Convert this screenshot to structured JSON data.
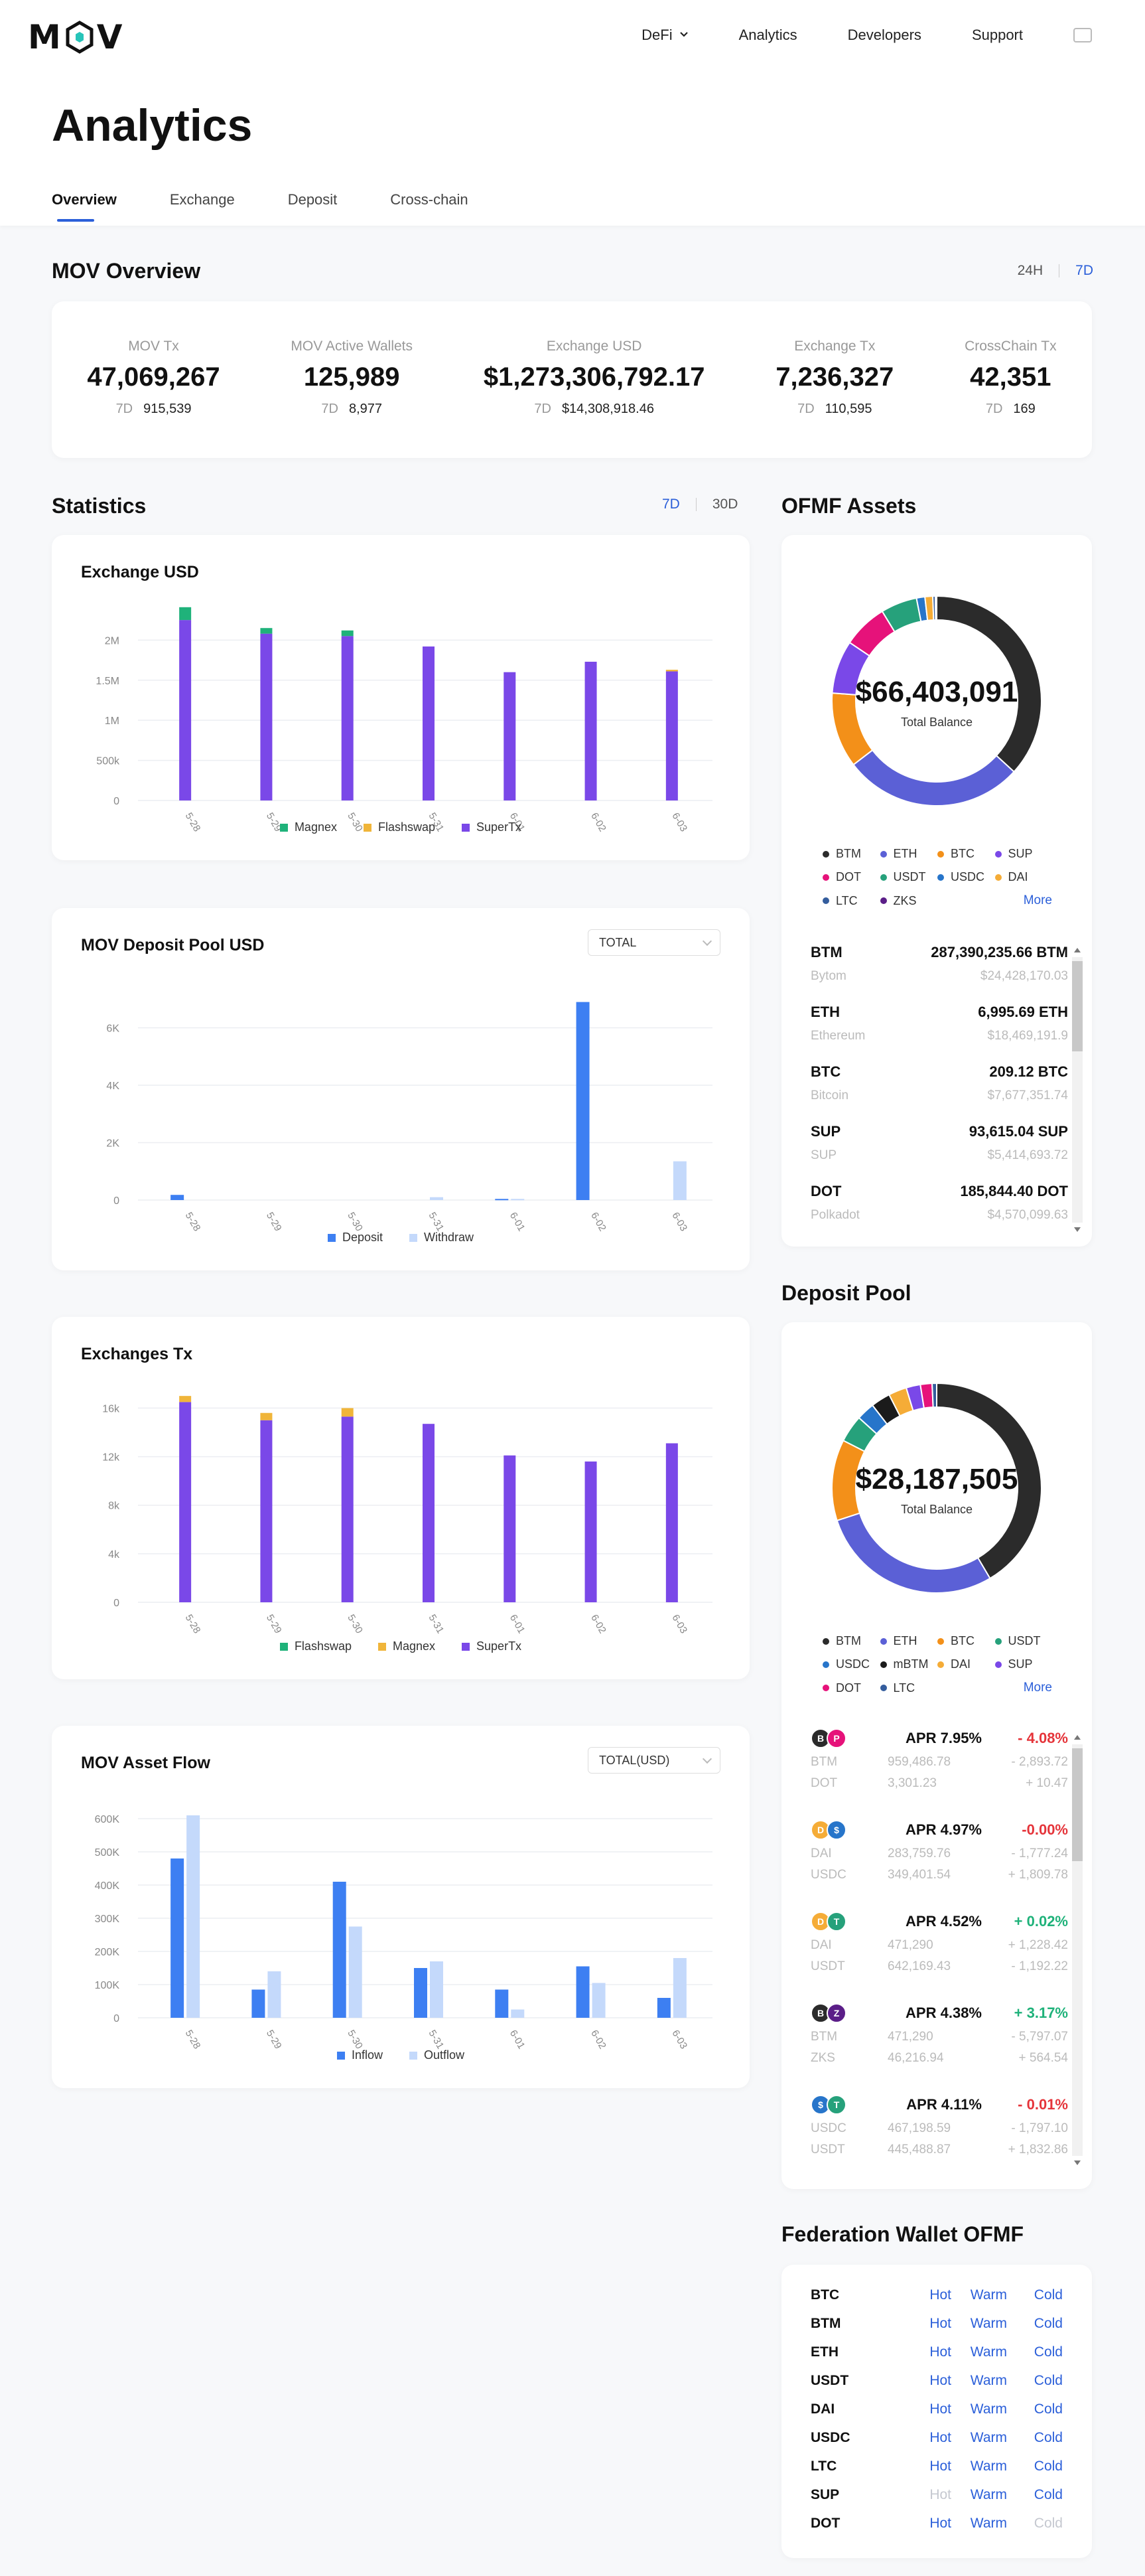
{
  "header": {
    "logo": "MOV",
    "nav": [
      {
        "label": "DeFi",
        "has_dropdown": true
      },
      {
        "label": "Analytics"
      },
      {
        "label": "Developers"
      },
      {
        "label": "Support"
      }
    ],
    "lang_icon": "language-icon"
  },
  "page_title": "Analytics",
  "tabs": [
    {
      "label": "Overview",
      "active": true
    },
    {
      "label": "Exchange"
    },
    {
      "label": "Deposit"
    },
    {
      "label": "Cross-chain"
    }
  ],
  "overview": {
    "title": "MOV Overview",
    "ranges": [
      "24H",
      "7D"
    ],
    "active_range": "7D",
    "stats": [
      {
        "label": "MOV Tx",
        "value": "47,069,267",
        "sub_tag": "7D",
        "sub_value": "915,539"
      },
      {
        "label": "MOV Active Wallets",
        "value": "125,989",
        "sub_tag": "7D",
        "sub_value": "8,977"
      },
      {
        "label": "Exchange USD",
        "value": "$1,273,306,792.17",
        "sub_tag": "7D",
        "sub_value": "$14,308,918.46"
      },
      {
        "label": "Exchange Tx",
        "value": "7,236,327",
        "sub_tag": "7D",
        "sub_value": "110,595"
      },
      {
        "label": "CrossChain Tx",
        "value": "42,351",
        "sub_tag": "7D",
        "sub_value": "169"
      }
    ]
  },
  "statistics": {
    "title": "Statistics",
    "ranges": [
      "7D",
      "30D"
    ],
    "active_range": "7D"
  },
  "colors": {
    "magnex": "#1fb27a",
    "flashswap": "#f0b53a",
    "supertx": "#7a48e8",
    "deposit": "#3d7ff2",
    "withdraw": "#c4d9fb",
    "inflow": "#3d7ff2",
    "outflow": "#c4d9fb",
    "accent": "#2b5fd9"
  },
  "chart_data": [
    {
      "type": "bar",
      "title": "Exchange USD",
      "stacked": true,
      "categories": [
        "5-28",
        "5-29",
        "5-30",
        "5-31",
        "6-01",
        "6-02",
        "6-03"
      ],
      "y_ticks": [
        "0",
        "500k",
        "1M",
        "1.5M",
        "2M"
      ],
      "ylim": [
        0,
        2400000
      ],
      "series": [
        {
          "name": "SuperTx",
          "color": "#7a48e8",
          "values": [
            2250000,
            2080000,
            2050000,
            1920000,
            1600000,
            1730000,
            1610000
          ]
        },
        {
          "name": "Flashswap",
          "color": "#f0b53a",
          "values": [
            0,
            0,
            0,
            0,
            0,
            0,
            20000
          ]
        },
        {
          "name": "Magnex",
          "color": "#1fb27a",
          "values": [
            160000,
            70000,
            70000,
            0,
            0,
            0,
            0
          ]
        }
      ],
      "legend": [
        "Magnex",
        "Flashswap",
        "SuperTx"
      ]
    },
    {
      "type": "bar",
      "title": "MOV Deposit Pool USD",
      "select": "TOTAL",
      "grouped": true,
      "categories": [
        "5-28",
        "5-29",
        "5-30",
        "5-31",
        "6-01",
        "6-02",
        "6-03"
      ],
      "y_ticks": [
        "0",
        "2K",
        "4K",
        "6K"
      ],
      "ylim": [
        0,
        7400
      ],
      "series": [
        {
          "name": "Deposit",
          "color": "#3d7ff2",
          "values": [
            180,
            0,
            0,
            0,
            40,
            6900,
            0
          ]
        },
        {
          "name": "Withdraw",
          "color": "#c4d9fb",
          "values": [
            0,
            0,
            0,
            100,
            40,
            0,
            1350
          ]
        }
      ],
      "legend": [
        "Deposit",
        "Withdraw"
      ]
    },
    {
      "type": "bar",
      "title": "Exchanges Tx",
      "stacked": true,
      "categories": [
        "5-28",
        "5-29",
        "5-30",
        "5-31",
        "6-01",
        "6-02",
        "6-03"
      ],
      "y_ticks": [
        "0",
        "4k",
        "8k",
        "12k",
        "16k"
      ],
      "ylim": [
        0,
        17500
      ],
      "series": [
        {
          "name": "SuperTx",
          "color": "#7a48e8",
          "values": [
            16500,
            15000,
            15300,
            14700,
            12100,
            11600,
            13100
          ]
        },
        {
          "name": "Magnex",
          "color": "#f0b53a",
          "values": [
            500,
            600,
            700,
            0,
            0,
            0,
            0
          ]
        },
        {
          "name": "Flashswap",
          "color": "#1fb27a",
          "values": [
            0,
            0,
            0,
            0,
            0,
            0,
            0
          ]
        }
      ],
      "legend": [
        "Flashswap",
        "Magnex",
        "SuperTx"
      ]
    },
    {
      "type": "bar",
      "title": "MOV Asset Flow",
      "select": "TOTAL(USD)",
      "grouped": true,
      "categories": [
        "5-28",
        "5-29",
        "5-30",
        "5-31",
        "6-01",
        "6-02",
        "6-03"
      ],
      "y_ticks": [
        "0",
        "100K",
        "200K",
        "300K",
        "400K",
        "500K",
        "600K"
      ],
      "ylim": [
        0,
        640000
      ],
      "series": [
        {
          "name": "Inflow",
          "color": "#3d7ff2",
          "values": [
            480000,
            85000,
            410000,
            150000,
            85000,
            155000,
            60000
          ]
        },
        {
          "name": "Outflow",
          "color": "#c4d9fb",
          "values": [
            610000,
            140000,
            275000,
            170000,
            25000,
            105000,
            180000
          ]
        }
      ],
      "legend": [
        "Inflow",
        "Outflow"
      ]
    },
    {
      "type": "pie",
      "title": "OFMF Assets",
      "center_value": "$66,403,091",
      "center_label": "Total Balance",
      "slices": [
        {
          "name": "BTM",
          "color": "#2b2b2b",
          "value": 36.8
        },
        {
          "name": "ETH",
          "color": "#5b60d6",
          "value": 27.8
        },
        {
          "name": "BTC",
          "color": "#f39019",
          "value": 11.6
        },
        {
          "name": "SUP",
          "color": "#7a48e8",
          "value": 8.2
        },
        {
          "name": "DOT",
          "color": "#e6127a",
          "value": 6.9
        },
        {
          "name": "USDT",
          "color": "#26a17b",
          "value": 5.6
        },
        {
          "name": "USDC",
          "color": "#2775ca",
          "value": 1.3
        },
        {
          "name": "DAI",
          "color": "#f5ac37",
          "value": 1.2
        },
        {
          "name": "LTC",
          "color": "#345d9d",
          "value": 0.4
        },
        {
          "name": "ZKS",
          "color": "#5b1e88",
          "value": 0.2
        }
      ],
      "legend_more": "More"
    },
    {
      "type": "pie",
      "title": "Deposit Pool",
      "center_value": "$28,187,505",
      "center_label": "Total Balance",
      "slices": [
        {
          "name": "BTM",
          "color": "#2b2b2b",
          "value": 41.5
        },
        {
          "name": "ETH",
          "color": "#5b60d6",
          "value": 28.5
        },
        {
          "name": "BTC",
          "color": "#f39019",
          "value": 12.5
        },
        {
          "name": "USDT",
          "color": "#26a17b",
          "value": 4.2
        },
        {
          "name": "USDC",
          "color": "#2775ca",
          "value": 2.8
        },
        {
          "name": "mBTM",
          "color": "#1b1b1b",
          "value": 3.0
        },
        {
          "name": "DAI",
          "color": "#f5ac37",
          "value": 2.8
        },
        {
          "name": "SUP",
          "color": "#7a48e8",
          "value": 2.2
        },
        {
          "name": "DOT",
          "color": "#e6127a",
          "value": 1.8
        },
        {
          "name": "LTC",
          "color": "#345d9d",
          "value": 0.7
        }
      ],
      "legend_more": "More"
    }
  ],
  "ofmf_assets_list": [
    {
      "symbol": "BTM",
      "amount": "287,390,235.66 BTM",
      "name": "Bytom",
      "usd": "$24,428,170.03"
    },
    {
      "symbol": "ETH",
      "amount": "6,995.69 ETH",
      "name": "Ethereum",
      "usd": "$18,469,191.9"
    },
    {
      "symbol": "BTC",
      "amount": "209.12 BTC",
      "name": "Bitcoin",
      "usd": "$7,677,351.74"
    },
    {
      "symbol": "SUP",
      "amount": "93,615.04 SUP",
      "name": "SUP",
      "usd": "$5,414,693.72"
    },
    {
      "symbol": "DOT",
      "amount": "185,844.40 DOT",
      "name": "Polkadot",
      "usd": "$4,570,099.63"
    }
  ],
  "deposit_pool_list": [
    {
      "icons": [
        {
          "glyph": "B",
          "color": "#2b2b2b"
        },
        {
          "glyph": "P",
          "color": "#e6127a"
        }
      ],
      "apr": "APR 7.95%",
      "change": "- 4.08%",
      "dir": "neg",
      "rows": [
        {
          "token": "BTM",
          "amount": "959,486.78",
          "delta": "- 2,893.72"
        },
        {
          "token": "DOT",
          "amount": "3,301.23",
          "delta": "+ 10.47"
        }
      ]
    },
    {
      "icons": [
        {
          "glyph": "D",
          "color": "#f5ac37"
        },
        {
          "glyph": "$",
          "color": "#2775ca"
        }
      ],
      "apr": "APR 4.97%",
      "change": "-0.00%",
      "dir": "neg",
      "rows": [
        {
          "token": "DAI",
          "amount": "283,759.76",
          "delta": "- 1,777.24"
        },
        {
          "token": "USDC",
          "amount": "349,401.54",
          "delta": "+ 1,809.78"
        }
      ]
    },
    {
      "icons": [
        {
          "glyph": "D",
          "color": "#f5ac37"
        },
        {
          "glyph": "T",
          "color": "#26a17b"
        }
      ],
      "apr": "APR 4.52%",
      "change": "+ 0.02%",
      "dir": "pos",
      "rows": [
        {
          "token": "DAI",
          "amount": "471,290",
          "delta": "+ 1,228.42"
        },
        {
          "token": "USDT",
          "amount": "642,169.43",
          "delta": "- 1,192.22"
        }
      ]
    },
    {
      "icons": [
        {
          "glyph": "B",
          "color": "#2b2b2b"
        },
        {
          "glyph": "Z",
          "color": "#5b1e88"
        }
      ],
      "apr": "APR 4.38%",
      "change": "+ 3.17%",
      "dir": "pos",
      "rows": [
        {
          "token": "BTM",
          "amount": "471,290",
          "delta": "- 5,797.07"
        },
        {
          "token": "ZKS",
          "amount": "46,216.94",
          "delta": "+ 564.54"
        }
      ]
    },
    {
      "icons": [
        {
          "glyph": "$",
          "color": "#2775ca"
        },
        {
          "glyph": "T",
          "color": "#26a17b"
        }
      ],
      "apr": "APR 4.11%",
      "change": "- 0.01%",
      "dir": "neg",
      "rows": [
        {
          "token": "USDC",
          "amount": "467,198.59",
          "delta": "- 1,797.10"
        },
        {
          "token": "USDT",
          "amount": "445,488.87",
          "delta": "+ 1,832.86"
        }
      ]
    }
  ],
  "federation_wallet": {
    "title": "Federation Wallet OFMF",
    "labels": [
      "Hot",
      "Warm",
      "Cold"
    ],
    "rows": [
      {
        "token": "BTC",
        "hot": true,
        "warm": true,
        "cold": true
      },
      {
        "token": "BTM",
        "hot": true,
        "warm": true,
        "cold": true
      },
      {
        "token": "ETH",
        "hot": true,
        "warm": true,
        "cold": true
      },
      {
        "token": "USDT",
        "hot": true,
        "warm": true,
        "cold": true
      },
      {
        "token": "DAI",
        "hot": true,
        "warm": true,
        "cold": true
      },
      {
        "token": "USDC",
        "hot": true,
        "warm": true,
        "cold": true
      },
      {
        "token": "LTC",
        "hot": true,
        "warm": true,
        "cold": true
      },
      {
        "token": "SUP",
        "hot": false,
        "warm": true,
        "cold": true
      },
      {
        "token": "DOT",
        "hot": true,
        "warm": true,
        "cold": false
      }
    ]
  }
}
